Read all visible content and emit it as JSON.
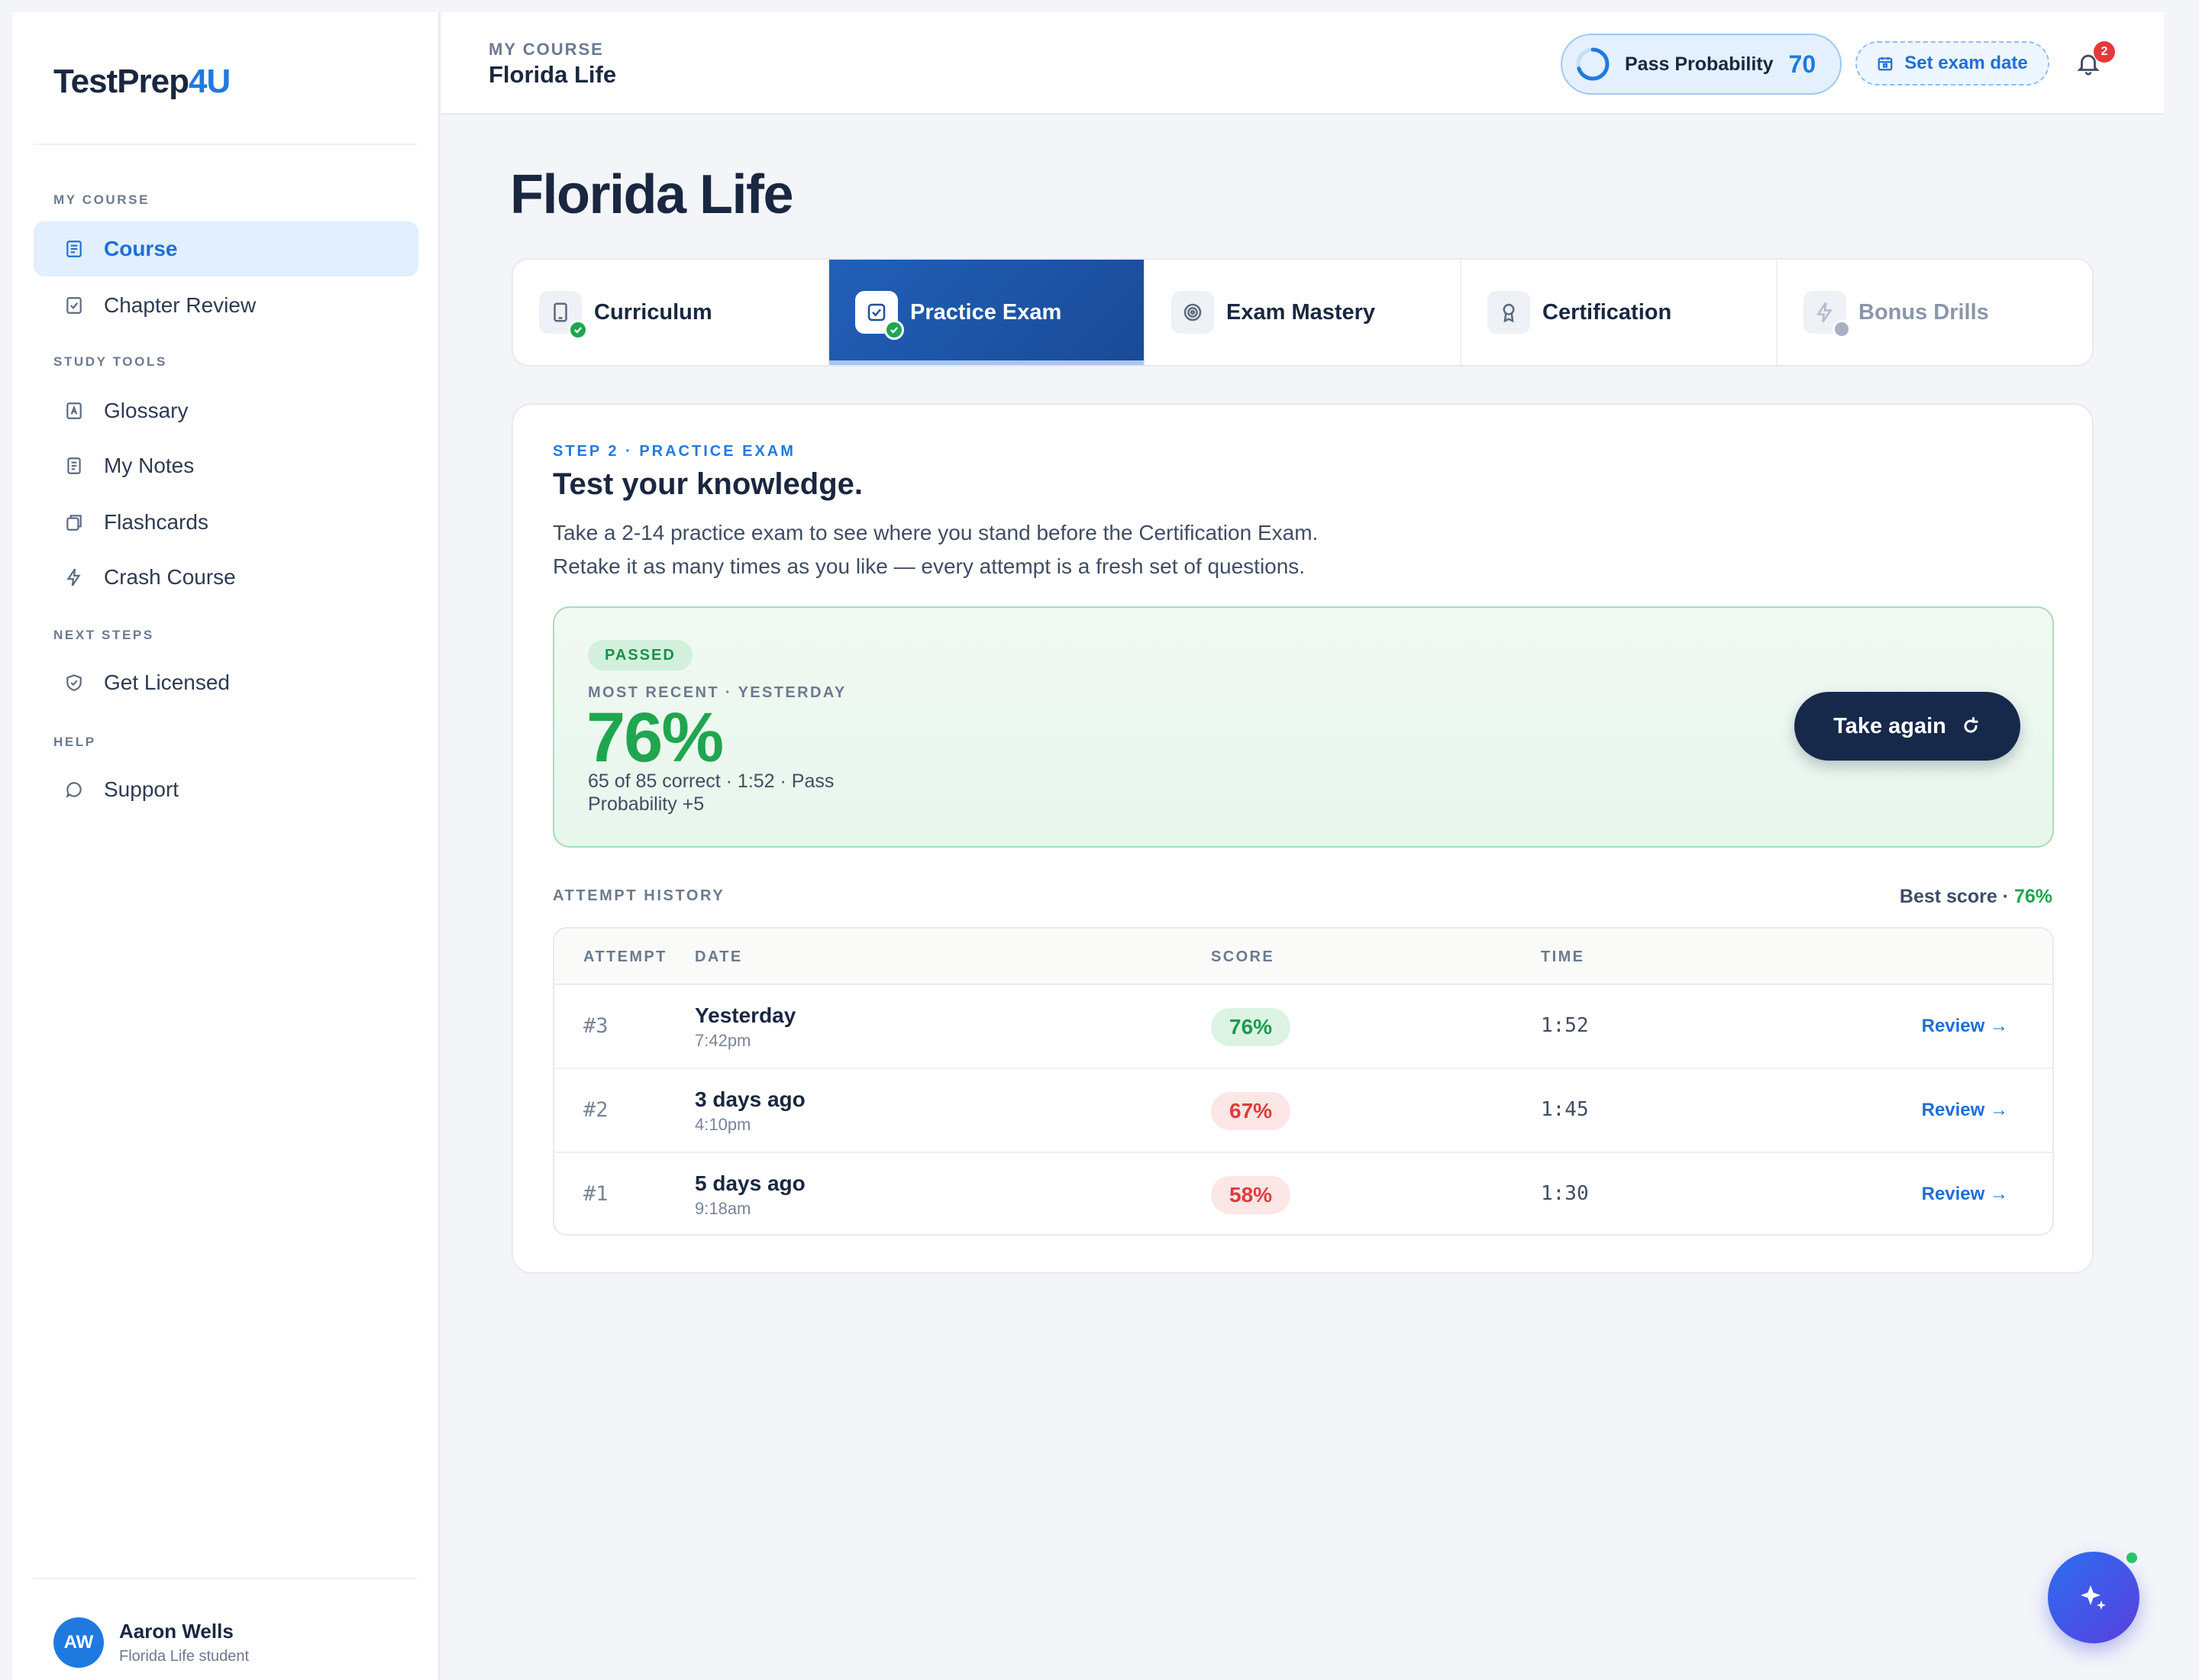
{
  "app": {
    "logo_main": "TestPrep",
    "logo_accent": "4U"
  },
  "sidebar": {
    "sections": [
      {
        "label": "MY COURSE",
        "items": [
          {
            "label": "Course",
            "icon": "book-icon",
            "active": true
          },
          {
            "label": "Chapter Review",
            "icon": "checklist-icon",
            "active": false
          }
        ]
      },
      {
        "label": "STUDY TOOLS",
        "items": [
          {
            "label": "Glossary",
            "icon": "glossary-icon",
            "active": false
          },
          {
            "label": "My Notes",
            "icon": "notes-icon",
            "active": false
          },
          {
            "label": "Flashcards",
            "icon": "flashcards-icon",
            "active": false
          },
          {
            "label": "Crash Course",
            "icon": "lightning-icon",
            "active": false
          }
        ]
      },
      {
        "label": "NEXT STEPS",
        "items": [
          {
            "label": "Get Licensed",
            "icon": "shield-check-icon",
            "active": false
          }
        ]
      },
      {
        "label": "HELP",
        "items": [
          {
            "label": "Support",
            "icon": "chat-bubble-icon",
            "active": false
          }
        ]
      }
    ],
    "user": {
      "initials": "AW",
      "name": "Aaron Wells",
      "subtitle": "Florida Life student"
    }
  },
  "header": {
    "eyebrow": "MY COURSE",
    "title": "Florida Life",
    "pass_probability": {
      "label": "Pass Probability",
      "value": "70"
    },
    "set_exam_date": "Set exam date",
    "notifications_count": "2"
  },
  "page": {
    "title": "Florida Life"
  },
  "tabs": [
    {
      "label": "Curriculum",
      "state": "completed",
      "icon": "tablet-icon"
    },
    {
      "label": "Practice Exam",
      "state": "active",
      "icon": "checkbox-icon"
    },
    {
      "label": "Exam Mastery",
      "state": "default",
      "icon": "target-icon"
    },
    {
      "label": "Certification",
      "state": "default",
      "icon": "award-icon"
    },
    {
      "label": "Bonus Drills",
      "state": "locked",
      "icon": "lightning-icon"
    }
  ],
  "practice": {
    "eyebrow": "STEP 2 · PRACTICE EXAM",
    "heading": "Test your knowledge.",
    "description_line1": "Take a 2-14 practice exam to see where you stand before the Certification Exam.",
    "description_line2": "Retake it as many times as you like — every attempt is a fresh set of questions.",
    "result": {
      "badge": "PASSED",
      "recent_label": "MOST RECENT · YESTERDAY",
      "score": "76%",
      "detail": "65 of 85 correct · 1:52 · Pass Probability +5",
      "take_again": "Take again"
    },
    "history": {
      "label": "ATTEMPT HISTORY",
      "best_label": "Best score · ",
      "best_value": "76%",
      "columns": [
        "ATTEMPT",
        "DATE",
        "SCORE",
        "TIME"
      ],
      "review_label": "Review →",
      "rows": [
        {
          "attempt": "#3",
          "date": "Yesterday",
          "time_of_day": "7:42pm",
          "score": "76%",
          "pass": true,
          "duration": "1:52"
        },
        {
          "attempt": "#2",
          "date": "3 days ago",
          "time_of_day": "4:10pm",
          "score": "67%",
          "pass": false,
          "duration": "1:45"
        },
        {
          "attempt": "#1",
          "date": "5 days ago",
          "time_of_day": "9:18am",
          "score": "58%",
          "pass": false,
          "duration": "1:30"
        }
      ]
    }
  },
  "colors": {
    "accent": "#1f7ae0",
    "pass": "#1fa64f",
    "fail": "#e03b3b",
    "navy": "#17294a"
  }
}
